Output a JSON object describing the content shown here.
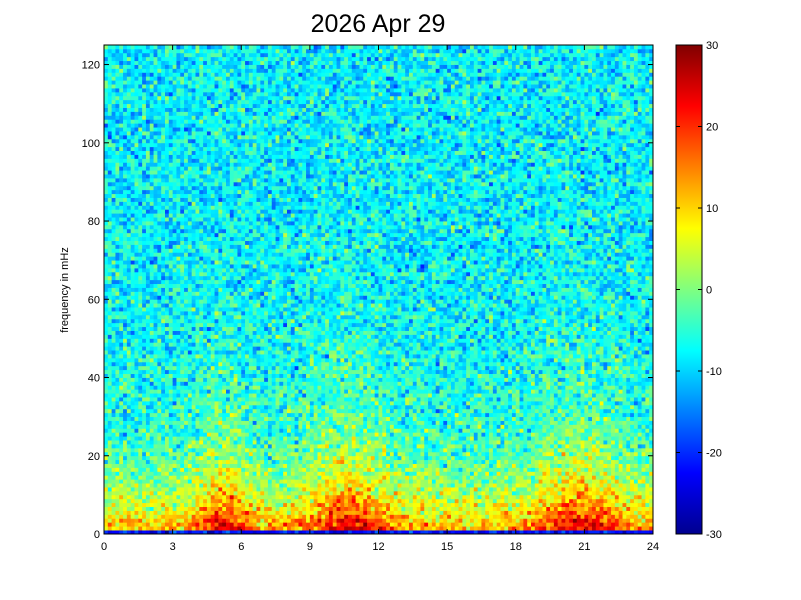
{
  "chart_data": {
    "type": "heatmap",
    "title": "2026 Apr 29",
    "xlabel": "",
    "ylabel": "frequency in mHz",
    "xlim": [
      0,
      24
    ],
    "ylim": [
      0,
      125
    ],
    "xticks": [
      "0",
      "3",
      "6",
      "9",
      "12",
      "15",
      "18",
      "21",
      "24"
    ],
    "xtick_values": [
      0,
      3,
      6,
      9,
      12,
      15,
      18,
      21,
      24
    ],
    "yticks": [
      "0",
      "20",
      "40",
      "60",
      "80",
      "100",
      "120"
    ],
    "ytick_values": [
      0,
      20,
      40,
      60,
      80,
      100,
      120
    ],
    "colorbar": {
      "colormap": "jet",
      "range": [
        -30,
        30
      ],
      "ticks": [
        "30",
        "20",
        "10",
        "0",
        "-10",
        "-20",
        "-30"
      ],
      "tick_values": [
        30,
        20,
        10,
        0,
        -10,
        -20,
        -30
      ]
    },
    "grid": false,
    "description_of_values": {
      "background_level": -8,
      "low_frequency_band_max_mHz": 25,
      "peak_intensity": 30,
      "high_activity_hours": [
        [
          4.5,
          6
        ],
        [
          9,
          12.5
        ],
        [
          19,
          22.5
        ]
      ]
    }
  }
}
